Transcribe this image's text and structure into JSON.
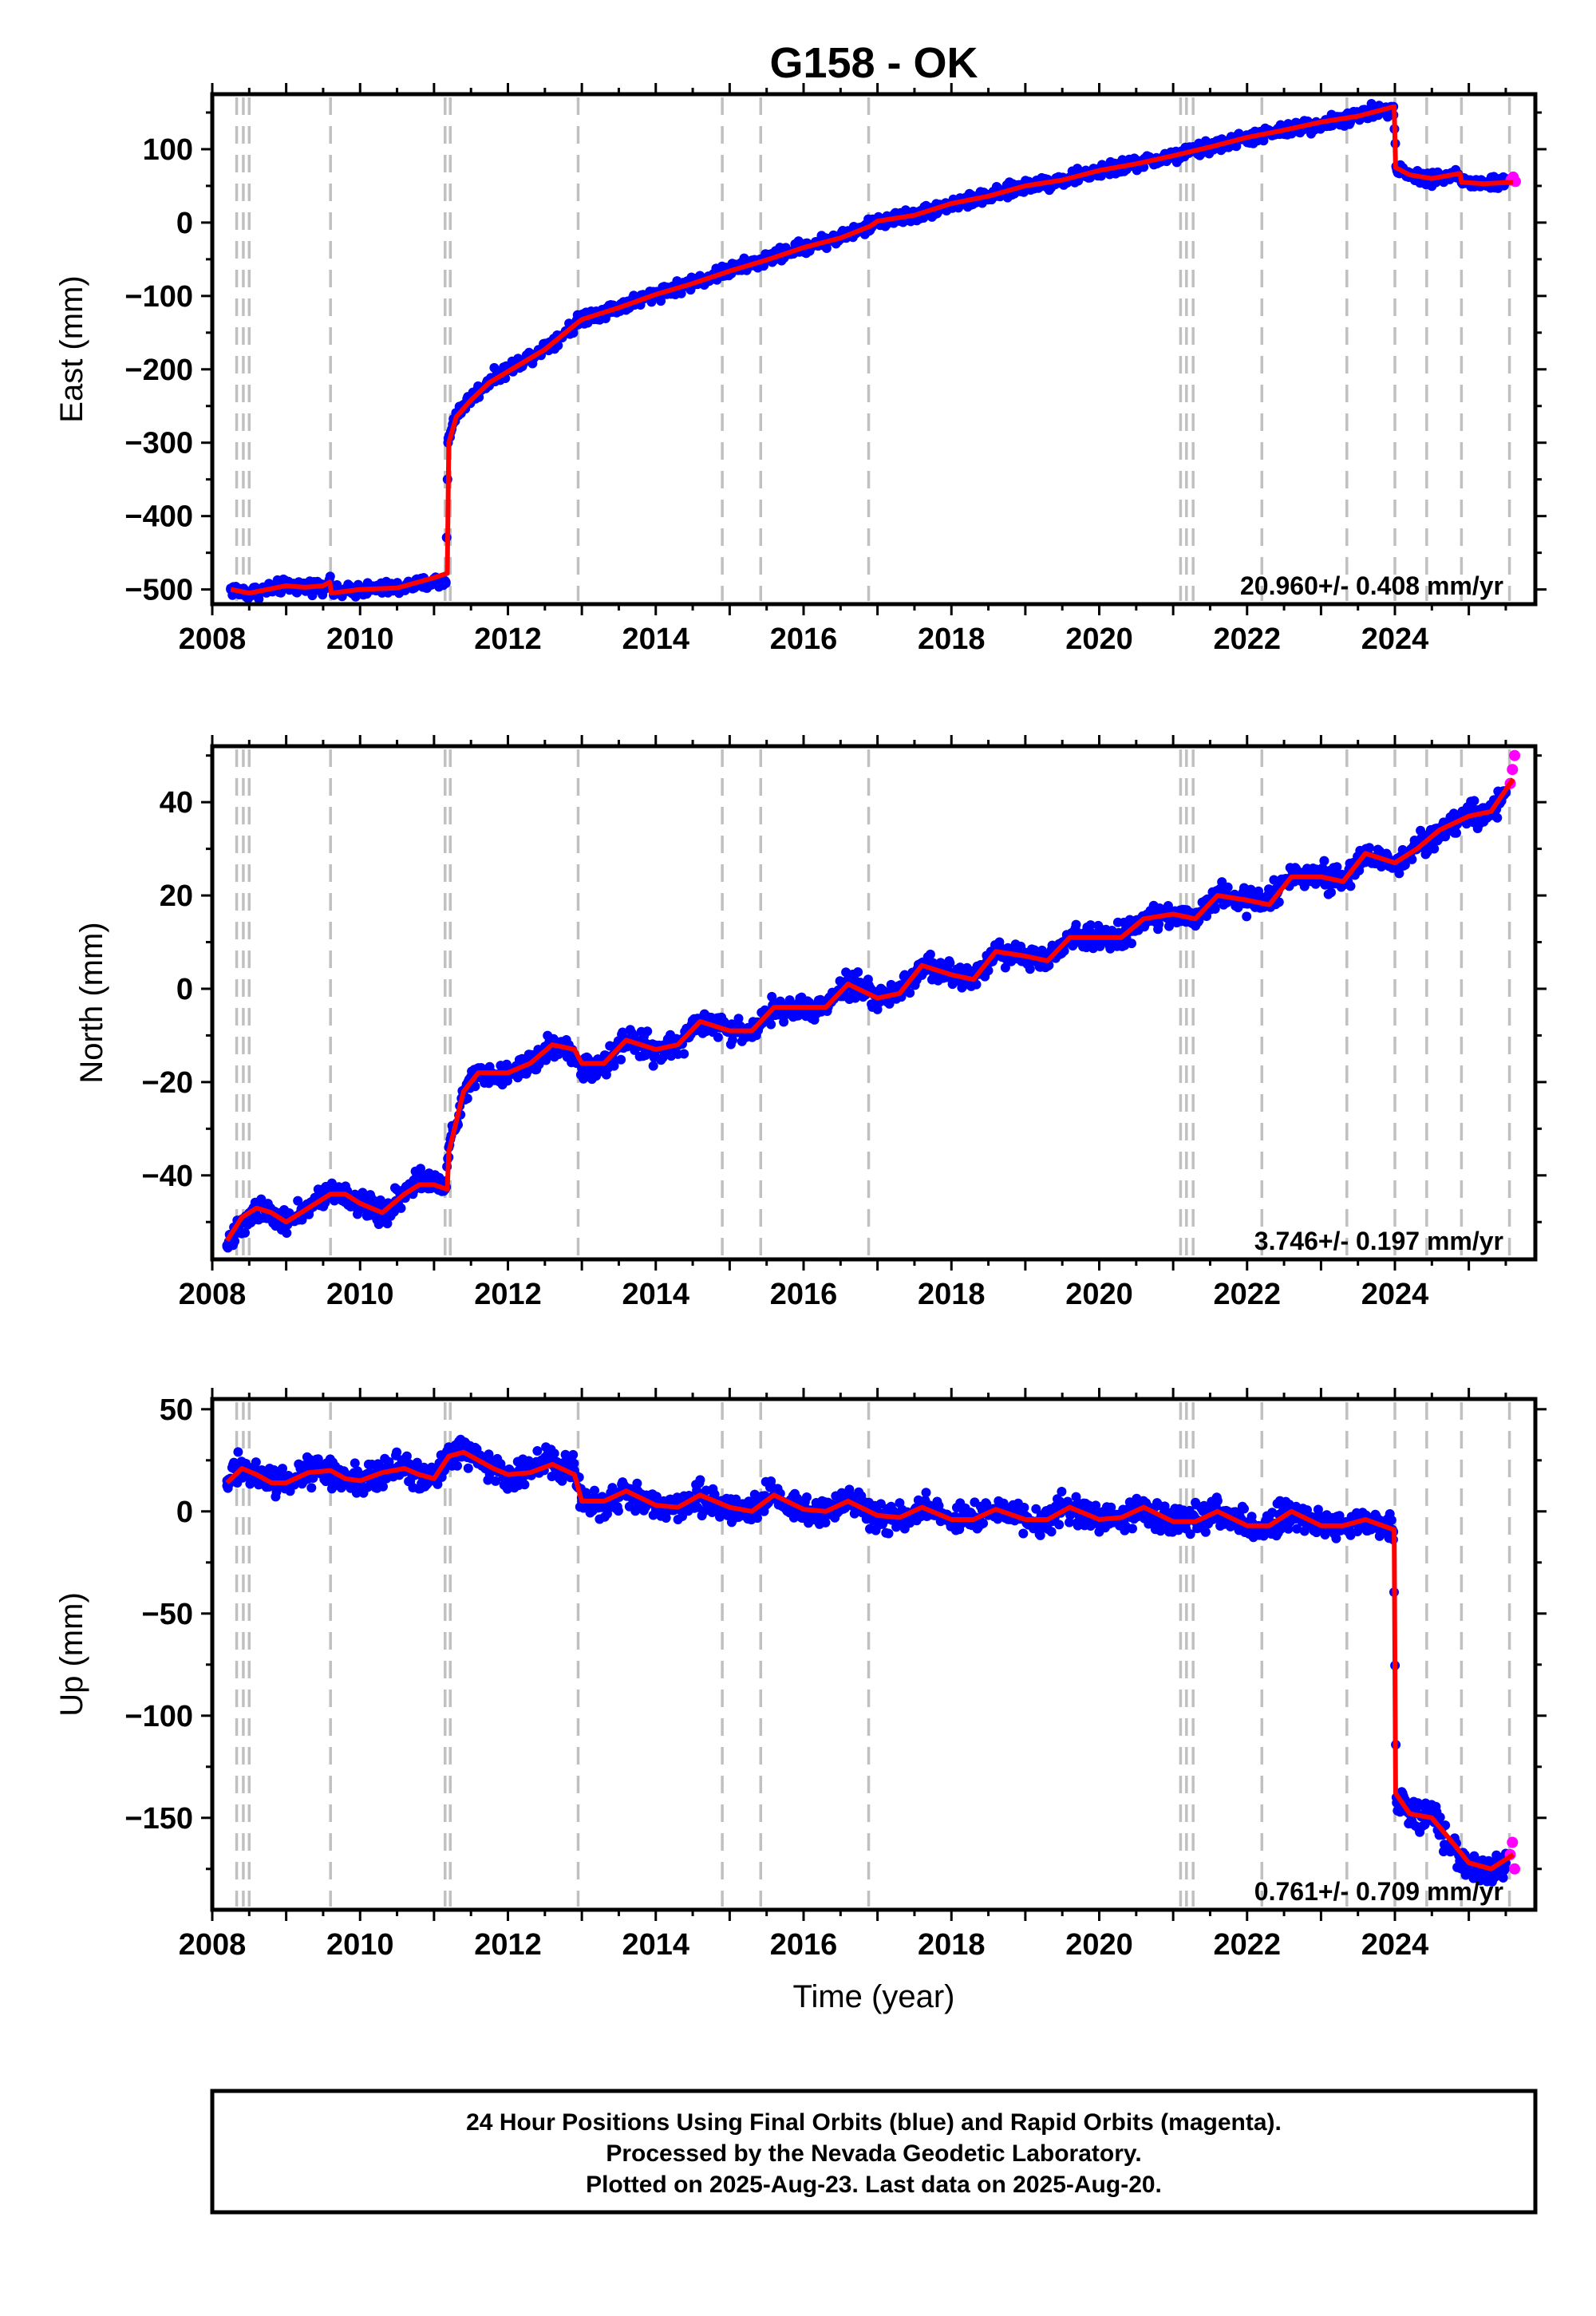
{
  "figure": {
    "title": "G158 - OK",
    "xlabel": "Time (year)",
    "footer_lines": [
      "24 Hour Positions Using Final Orbits (blue) and Rapid Orbits (magenta).",
      "Processed by the Nevada Geodetic Laboratory.",
      "Plotted on 2025-Aug-23. Last data on 2025-Aug-20."
    ]
  },
  "colors": {
    "final_orbits": "#0000ff",
    "rapid_orbits": "#ff00ff",
    "model": "#ff0000",
    "event_lines": "#c0c0c0",
    "frame": "#000000"
  },
  "chart_data": [
    {
      "type": "scatter",
      "title": "G158 - OK",
      "ylabel": "East (mm)",
      "xlabel": "",
      "xlim": [
        2008.0,
        2025.9
      ],
      "ylim": [
        -520,
        175
      ],
      "xticks": [
        2008,
        2010,
        2012,
        2014,
        2016,
        2018,
        2020,
        2022,
        2024
      ],
      "yticks": [
        -500,
        -400,
        -300,
        -200,
        -100,
        0,
        100
      ],
      "rate_label": "20.960+/- 0.408 mm/yr",
      "grid": false,
      "equipment_changes": [
        2008.33,
        2008.42,
        2008.5,
        2009.6,
        2011.15,
        2011.22,
        2012.95,
        2014.9,
        2015.42,
        2016.88,
        2021.1,
        2021.18,
        2021.27,
        2022.2,
        2023.35,
        2024.0,
        2024.43,
        2024.9,
        2025.55
      ],
      "series": [
        {
          "kind": "final_orbits",
          "x": [
            2008.25,
            2008.5,
            2008.75,
            2009.0,
            2009.25,
            2009.5,
            2009.58,
            2009.65,
            2010.0,
            2010.5,
            2011.0,
            2011.16,
            2011.19,
            2011.3,
            2011.5,
            2011.75,
            2012.0,
            2012.5,
            2012.9,
            2013.0,
            2013.5,
            2014.0,
            2014.5,
            2015.0,
            2015.5,
            2016.0,
            2016.5,
            2016.9,
            2017.0,
            2017.5,
            2018.0,
            2018.5,
            2019.0,
            2019.5,
            2020.0,
            2020.5,
            2021.0,
            2021.5,
            2022.0,
            2022.5,
            2023.0,
            2023.5,
            2023.98,
            2024.02,
            2024.2,
            2024.5,
            2024.85,
            2024.92,
            2025.2,
            2025.5
          ],
          "y": [
            -500,
            -505,
            -500,
            -495,
            -497,
            -495,
            -490,
            -505,
            -500,
            -498,
            -490,
            -490,
            -300,
            -260,
            -240,
            -215,
            -200,
            -170,
            -140,
            -130,
            -115,
            -97,
            -82,
            -65,
            -50,
            -33,
            -20,
            -5,
            2,
            10,
            25,
            35,
            50,
            58,
            70,
            80,
            90,
            103,
            115,
            125,
            135,
            145,
            158,
            75,
            65,
            60,
            65,
            55,
            53,
            55
          ]
        },
        {
          "kind": "rapid_orbits",
          "x": [
            2025.57,
            2025.6,
            2025.63
          ],
          "y": [
            58,
            62,
            56
          ]
        },
        {
          "kind": "model",
          "x": [
            2008.25,
            2008.5,
            2008.75,
            2009.0,
            2009.25,
            2009.5,
            2009.59,
            2009.61,
            2010.0,
            2010.5,
            2011.0,
            2011.18,
            2011.2,
            2011.3,
            2011.5,
            2011.75,
            2012.0,
            2012.5,
            2012.9,
            2013.0,
            2013.5,
            2014.0,
            2014.5,
            2015.0,
            2015.5,
            2016.0,
            2016.5,
            2016.9,
            2017.0,
            2017.5,
            2018.0,
            2018.5,
            2019.0,
            2019.5,
            2020.0,
            2020.5,
            2021.0,
            2021.5,
            2022.0,
            2022.5,
            2023.0,
            2023.5,
            2023.99,
            2024.01,
            2024.2,
            2024.5,
            2024.88,
            2024.9,
            2025.2,
            2025.6
          ],
          "y": [
            -500,
            -505,
            -500,
            -495,
            -497,
            -495,
            -490,
            -505,
            -500,
            -498,
            -484,
            -478,
            -300,
            -265,
            -242,
            -218,
            -203,
            -173,
            -140,
            -132,
            -116,
            -98,
            -83,
            -66,
            -51,
            -34,
            -21,
            -5,
            2,
            10,
            26,
            36,
            50,
            58,
            71,
            80,
            91,
            103,
            116,
            126,
            137,
            145,
            158,
            75,
            65,
            60,
            67,
            55,
            53,
            55
          ]
        }
      ]
    },
    {
      "type": "scatter",
      "title": "",
      "ylabel": "North (mm)",
      "xlabel": "",
      "xlim": [
        2008.0,
        2025.9
      ],
      "ylim": [
        -58,
        52
      ],
      "xticks": [
        2008,
        2010,
        2012,
        2014,
        2016,
        2018,
        2020,
        2022,
        2024
      ],
      "yticks": [
        -40,
        -20,
        0,
        20,
        40
      ],
      "rate_label": "3.746+/- 0.197 mm/yr",
      "grid": false,
      "equipment_changes": [
        2008.33,
        2008.42,
        2008.5,
        2009.6,
        2011.15,
        2011.22,
        2012.95,
        2014.9,
        2015.42,
        2016.88,
        2021.1,
        2021.18,
        2021.27,
        2022.2,
        2023.35,
        2024.0,
        2024.43,
        2024.9,
        2025.55
      ],
      "series": [
        {
          "kind": "final_orbits",
          "x": [
            2008.2,
            2008.4,
            2008.6,
            2008.8,
            2009.0,
            2009.3,
            2009.6,
            2009.8,
            2010.0,
            2010.3,
            2010.6,
            2010.8,
            2011.0,
            2011.15,
            2011.2,
            2011.4,
            2011.6,
            2012.0,
            2012.3,
            2012.6,
            2012.9,
            2013.0,
            2013.3,
            2013.6,
            2014.0,
            2014.3,
            2014.6,
            2015.0,
            2015.3,
            2015.6,
            2016.0,
            2016.3,
            2016.6,
            2017.0,
            2017.3,
            2017.6,
            2018.0,
            2018.3,
            2018.6,
            2019.0,
            2019.3,
            2019.6,
            2020.0,
            2020.3,
            2020.6,
            2021.0,
            2021.3,
            2021.6,
            2022.0,
            2022.3,
            2022.6,
            2023.0,
            2023.3,
            2023.6,
            2024.0,
            2024.3,
            2024.6,
            2025.0,
            2025.3,
            2025.5
          ],
          "y": [
            -55,
            -50,
            -47,
            -48,
            -50,
            -47,
            -44,
            -44,
            -46,
            -48,
            -44,
            -41,
            -42,
            -43,
            -34,
            -22,
            -18,
            -18,
            -16,
            -12,
            -14,
            -17,
            -16,
            -11,
            -13,
            -12,
            -7,
            -9,
            -9,
            -4,
            -4,
            -4,
            1,
            -2,
            -1,
            5,
            3,
            2,
            8,
            7,
            6,
            11,
            11,
            11,
            15,
            16,
            15,
            20,
            19,
            19,
            24,
            24,
            23,
            29,
            27,
            30,
            34,
            37,
            38,
            42
          ]
        },
        {
          "kind": "rapid_orbits",
          "x": [
            2025.56,
            2025.59,
            2025.62
          ],
          "y": [
            44,
            47,
            50
          ]
        },
        {
          "kind": "model",
          "x": [
            2008.2,
            2008.4,
            2008.6,
            2008.8,
            2009.0,
            2009.3,
            2009.6,
            2009.8,
            2010.0,
            2010.3,
            2010.6,
            2010.8,
            2011.0,
            2011.18,
            2011.2,
            2011.4,
            2011.6,
            2012.0,
            2012.3,
            2012.6,
            2012.9,
            2013.0,
            2013.3,
            2013.6,
            2014.0,
            2014.3,
            2014.6,
            2015.0,
            2015.3,
            2015.6,
            2016.0,
            2016.3,
            2016.6,
            2017.0,
            2017.3,
            2017.6,
            2018.0,
            2018.3,
            2018.6,
            2019.0,
            2019.3,
            2019.6,
            2020.0,
            2020.3,
            2020.6,
            2021.0,
            2021.3,
            2021.6,
            2022.0,
            2022.3,
            2022.6,
            2023.0,
            2023.3,
            2023.6,
            2024.0,
            2024.3,
            2024.6,
            2025.0,
            2025.3,
            2025.6
          ],
          "y": [
            -54,
            -49,
            -47,
            -48,
            -50,
            -47,
            -44,
            -44,
            -46,
            -48,
            -44,
            -42,
            -42,
            -43,
            -35,
            -22,
            -18,
            -18,
            -16,
            -12,
            -13,
            -16,
            -16,
            -11,
            -13,
            -12,
            -7,
            -9,
            -9,
            -4,
            -4,
            -4,
            1,
            -2,
            -1,
            5,
            3,
            2,
            8,
            7,
            6,
            11,
            11,
            11,
            15,
            16,
            15,
            20,
            19,
            18,
            24,
            24,
            23,
            29,
            27,
            30,
            34,
            37,
            38,
            45
          ]
        }
      ]
    },
    {
      "type": "scatter",
      "title": "",
      "ylabel": "Up (mm)",
      "xlabel": "Time (year)",
      "xlim": [
        2008.0,
        2025.9
      ],
      "ylim": [
        -195,
        55
      ],
      "xticks": [
        2008,
        2010,
        2012,
        2014,
        2016,
        2018,
        2020,
        2022,
        2024
      ],
      "yticks": [
        -150,
        -100,
        -50,
        0,
        50
      ],
      "rate_label": "0.761+/- 0.709 mm/yr",
      "grid": false,
      "equipment_changes": [
        2008.33,
        2008.42,
        2008.5,
        2009.6,
        2011.15,
        2011.22,
        2012.95,
        2014.9,
        2015.42,
        2016.88,
        2021.1,
        2021.18,
        2021.27,
        2022.2,
        2023.35,
        2024.0,
        2024.43,
        2024.9,
        2025.55
      ],
      "series": [
        {
          "kind": "final_orbits",
          "x": [
            2008.2,
            2008.4,
            2008.6,
            2008.8,
            2009.0,
            2009.3,
            2009.6,
            2009.8,
            2010.0,
            2010.3,
            2010.6,
            2010.8,
            2011.0,
            2011.2,
            2011.4,
            2011.6,
            2011.8,
            2012.0,
            2012.3,
            2012.6,
            2012.9,
            2013.0,
            2013.3,
            2013.6,
            2014.0,
            2014.3,
            2014.6,
            2015.0,
            2015.3,
            2015.6,
            2016.0,
            2016.3,
            2016.6,
            2017.0,
            2017.3,
            2017.6,
            2018.0,
            2018.3,
            2018.6,
            2019.0,
            2019.3,
            2019.6,
            2020.0,
            2020.3,
            2020.6,
            2021.0,
            2021.3,
            2021.6,
            2022.0,
            2022.3,
            2022.6,
            2023.0,
            2023.3,
            2023.6,
            2023.98,
            2024.02,
            2024.2,
            2024.5,
            2024.8,
            2025.0,
            2025.3,
            2025.5
          ],
          "y": [
            15,
            22,
            18,
            14,
            14,
            20,
            20,
            16,
            15,
            20,
            22,
            18,
            15,
            28,
            30,
            26,
            22,
            18,
            20,
            24,
            20,
            5,
            5,
            10,
            3,
            2,
            8,
            2,
            0,
            8,
            1,
            0,
            5,
            -2,
            -3,
            2,
            -4,
            -4,
            1,
            -4,
            -4,
            2,
            -4,
            -3,
            2,
            -5,
            -5,
            0,
            -7,
            -7,
            0,
            -7,
            -7,
            -4,
            -10,
            -140,
            -148,
            -150,
            -165,
            -175,
            -175,
            -172
          ]
        },
        {
          "kind": "rapid_orbits",
          "x": [
            2025.56,
            2025.59,
            2025.62
          ],
          "y": [
            -168,
            -162,
            -175
          ]
        },
        {
          "kind": "model",
          "x": [
            2008.2,
            2008.4,
            2008.6,
            2008.8,
            2009.0,
            2009.3,
            2009.6,
            2009.8,
            2010.0,
            2010.3,
            2010.6,
            2010.8,
            2011.0,
            2011.2,
            2011.4,
            2011.6,
            2011.8,
            2012.0,
            2012.3,
            2012.6,
            2012.9,
            2013.0,
            2013.3,
            2013.6,
            2014.0,
            2014.3,
            2014.6,
            2015.0,
            2015.3,
            2015.6,
            2016.0,
            2016.3,
            2016.6,
            2017.0,
            2017.3,
            2017.6,
            2018.0,
            2018.3,
            2018.6,
            2019.0,
            2019.3,
            2019.6,
            2020.0,
            2020.3,
            2020.6,
            2021.0,
            2021.3,
            2021.6,
            2022.0,
            2022.3,
            2022.6,
            2023.0,
            2023.3,
            2023.6,
            2023.99,
            2024.01,
            2024.2,
            2024.5,
            2024.8,
            2025.0,
            2025.3,
            2025.6
          ],
          "y": [
            14,
            21,
            18,
            14,
            14,
            19,
            20,
            16,
            15,
            19,
            21,
            18,
            16,
            27,
            29,
            25,
            21,
            18,
            19,
            23,
            18,
            5,
            5,
            10,
            3,
            2,
            8,
            2,
            0,
            8,
            1,
            0,
            5,
            -2,
            -3,
            2,
            -4,
            -4,
            1,
            -4,
            -4,
            2,
            -4,
            -3,
            2,
            -5,
            -5,
            0,
            -7,
            -7,
            0,
            -7,
            -7,
            -4,
            -9,
            -138,
            -148,
            -150,
            -163,
            -172,
            -175,
            -168
          ]
        }
      ]
    }
  ]
}
